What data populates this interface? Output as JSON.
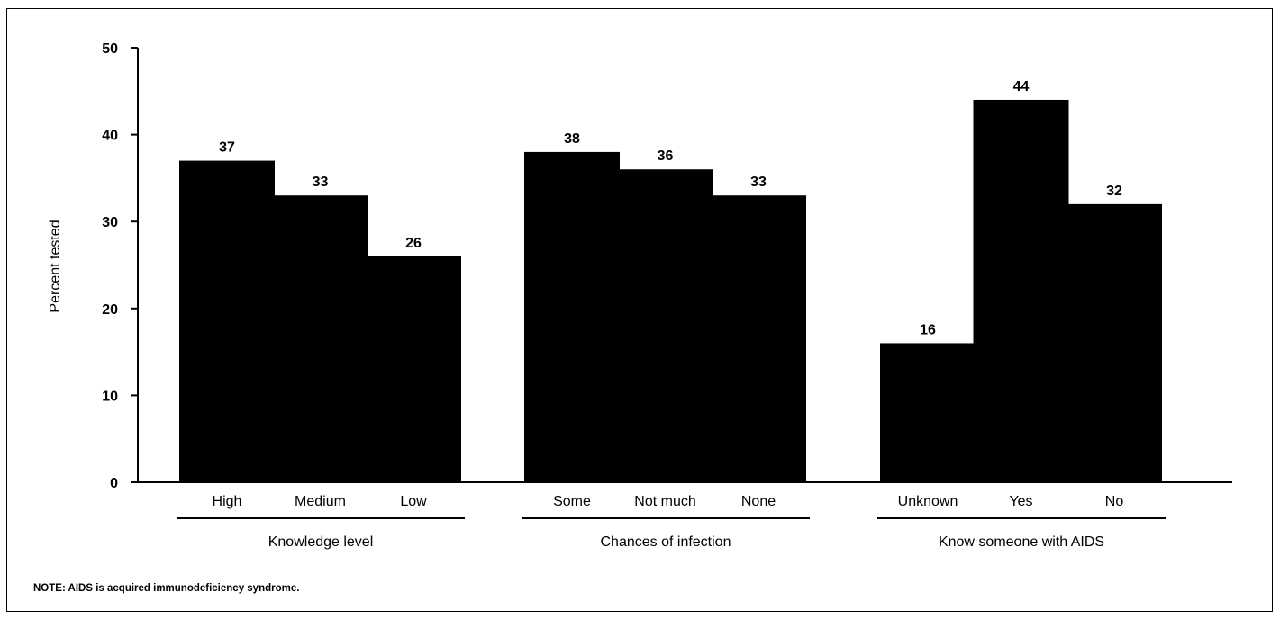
{
  "chart_data": {
    "type": "bar",
    "ylabel": "Percent tested",
    "ylim": [
      0,
      50
    ],
    "yticks": [
      0,
      10,
      20,
      30,
      40,
      50
    ],
    "grid": false,
    "groups": [
      {
        "label": "Knowledge level",
        "categories": [
          "High",
          "Medium",
          "Low"
        ],
        "values": [
          37,
          33,
          26
        ]
      },
      {
        "label": "Chances of infection",
        "categories": [
          "Some",
          "Not much",
          "None"
        ],
        "values": [
          38,
          36,
          33
        ]
      },
      {
        "label": "Know someone with AIDS",
        "categories": [
          "Unknown",
          "Yes",
          "No"
        ],
        "values": [
          16,
          44,
          32
        ]
      }
    ],
    "bar_color": "#000000"
  },
  "note": "NOTE: AIDS is acquired immunodeficiency syndrome."
}
